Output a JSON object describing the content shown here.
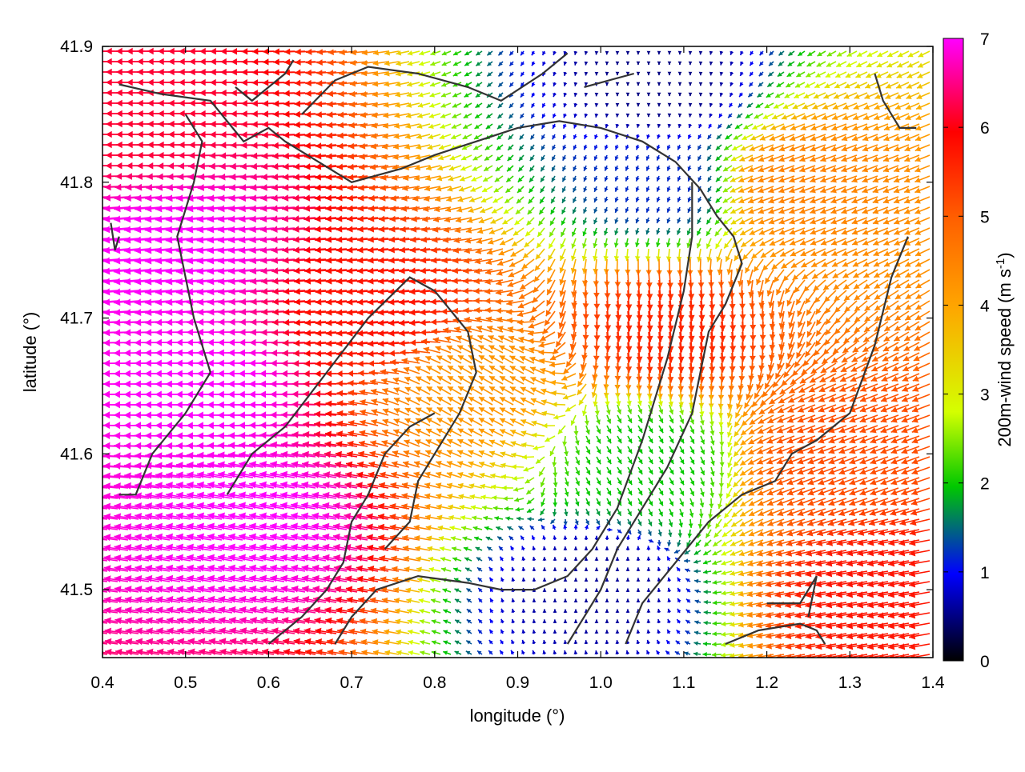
{
  "chart_data": {
    "type": "vector-field",
    "title": "",
    "xlabel": "longitude (°)",
    "ylabel": "latitude (°)",
    "xlim": [
      0.4,
      1.4
    ],
    "ylim": [
      41.45,
      41.9
    ],
    "xticks": [
      "0.4",
      "0.5",
      "0.6",
      "0.7",
      "0.8",
      "0.9",
      "1.0",
      "1.1",
      "1.2",
      "1.3",
      "1.4"
    ],
    "yticks": [
      "41.5",
      "41.6",
      "41.7",
      "41.8",
      "41.9"
    ],
    "grid": false,
    "colorbar": {
      "label_main": "200m-wind speed (m s",
      "label_sup": "-1",
      "label_end": ")",
      "range": [
        0,
        7
      ],
      "ticks": [
        "0",
        "1",
        "2",
        "3",
        "4",
        "5",
        "6",
        "7"
      ],
      "colors": [
        "#000000",
        "#0000ff",
        "#00c800",
        "#d4ff00",
        "#ffa500",
        "#ff6000",
        "#ff0000",
        "#ff00ff"
      ]
    },
    "wind_field": {
      "description": "200 m wind vectors coloured by speed; calm zones near (1.07, 41.87) and (0.99, 41.50)",
      "samples": [
        {
          "lon": 0.45,
          "lat": 41.85,
          "speed": 6.2,
          "dir_deg_from_east": 180
        },
        {
          "lon": 0.5,
          "lat": 41.75,
          "speed": 7.0,
          "dir_deg_from_east": 185
        },
        {
          "lon": 0.55,
          "lat": 41.65,
          "speed": 7.0,
          "dir_deg_from_east": 180
        },
        {
          "lon": 0.6,
          "lat": 41.55,
          "speed": 7.0,
          "dir_deg_from_east": 170
        },
        {
          "lon": 0.75,
          "lat": 41.7,
          "speed": 5.8,
          "dir_deg_from_east": 185
        },
        {
          "lon": 0.85,
          "lat": 41.65,
          "speed": 4.2,
          "dir_deg_from_east": 150
        },
        {
          "lon": 1.07,
          "lat": 41.87,
          "speed": 0.5,
          "dir_deg_from_east": 270
        },
        {
          "lon": 1.07,
          "lat": 41.8,
          "speed": 1.2,
          "dir_deg_from_east": 250
        },
        {
          "lon": 1.08,
          "lat": 41.7,
          "speed": 5.6,
          "dir_deg_from_east": 275
        },
        {
          "lon": 1.05,
          "lat": 41.6,
          "speed": 2.0,
          "dir_deg_from_east": 300
        },
        {
          "lon": 0.99,
          "lat": 41.5,
          "speed": 0.6,
          "dir_deg_from_east": 90
        },
        {
          "lon": 1.25,
          "lat": 41.8,
          "speed": 4.5,
          "dir_deg_from_east": 200
        },
        {
          "lon": 1.3,
          "lat": 41.6,
          "speed": 5.2,
          "dir_deg_from_east": 200
        },
        {
          "lon": 1.35,
          "lat": 41.5,
          "speed": 5.8,
          "dir_deg_from_east": 190
        }
      ]
    }
  }
}
